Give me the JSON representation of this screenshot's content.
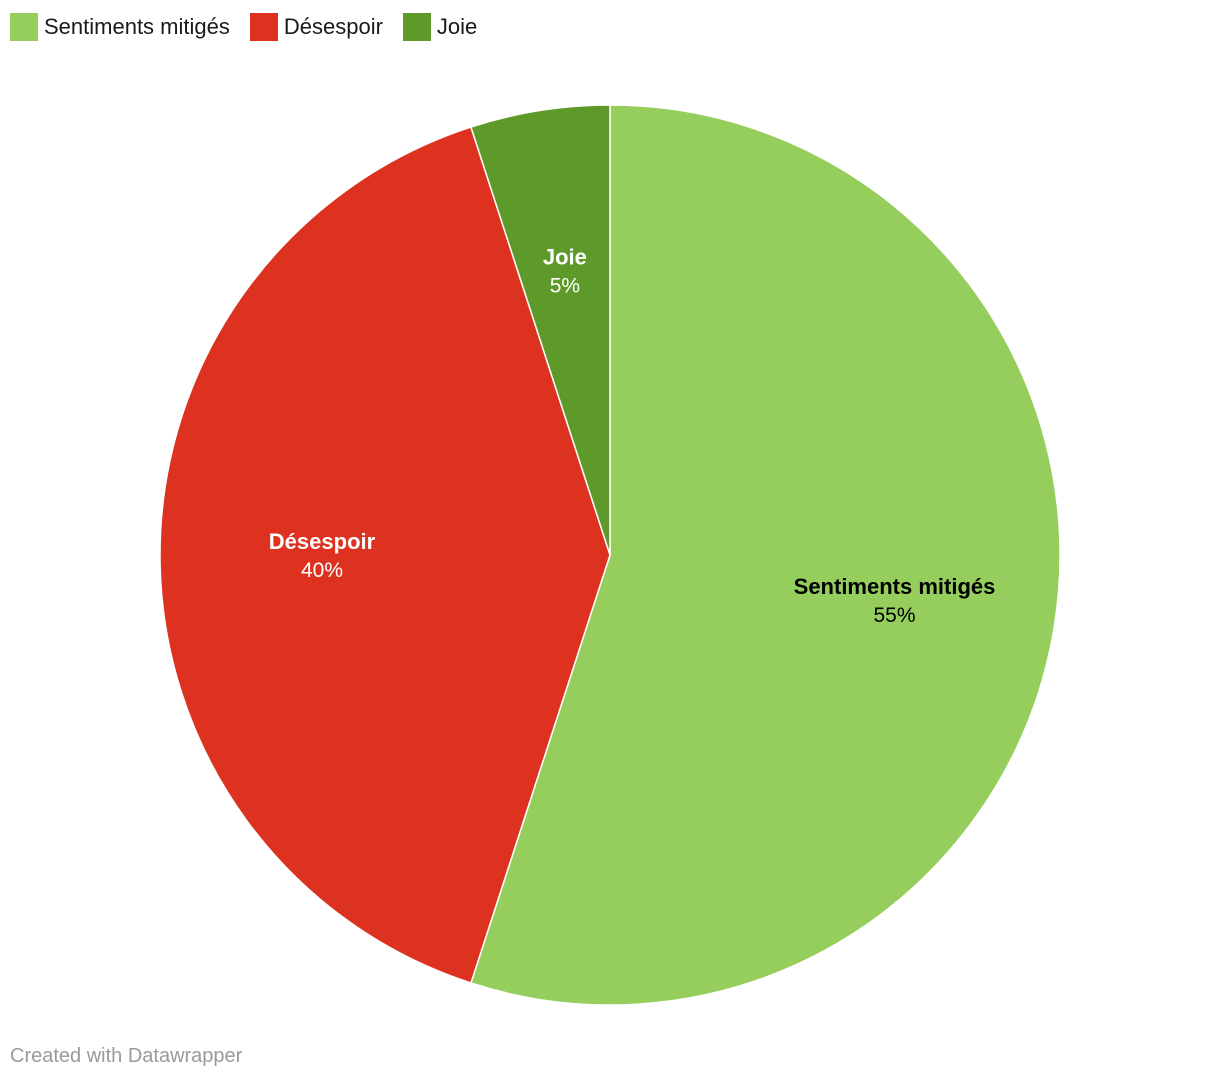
{
  "chart_data": {
    "type": "pie",
    "categories": [
      "Sentiments mitigés",
      "Désespoir",
      "Joie"
    ],
    "values": [
      55,
      40,
      5
    ],
    "value_labels": [
      "55%",
      "40%",
      "5%"
    ],
    "colors": [
      "#95ce5c",
      "#dc321f",
      "#5e9a29"
    ],
    "label_colors": [
      "#000000",
      "#ffffff",
      "#ffffff"
    ],
    "legend_position": "top-left"
  },
  "footer": {
    "credit": "Created with Datawrapper"
  }
}
